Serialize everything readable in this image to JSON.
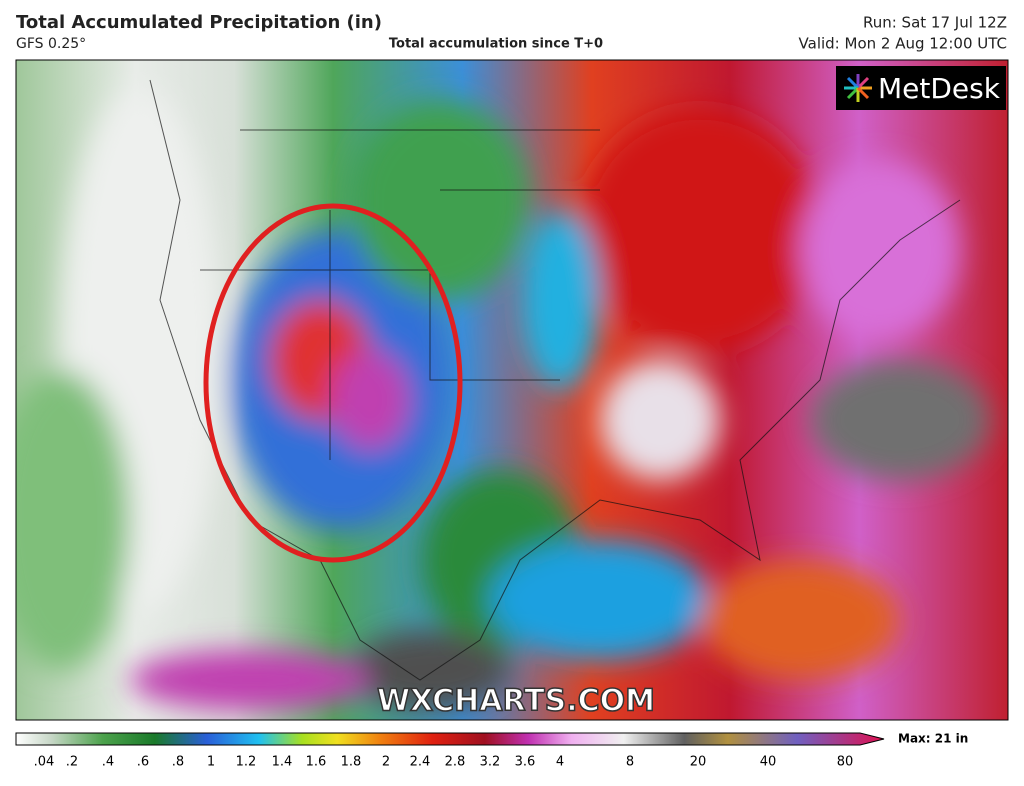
{
  "header": {
    "title": "Total Accumulated Precipitation (in)",
    "model": "GFS 0.25°",
    "subtitle": "Total accumulation since T+0",
    "run": "Run: Sat 17 Jul 12Z",
    "valid": "Valid: Mon 2 Aug 12:00 UTC"
  },
  "brand": "MetDesk",
  "watermark": "WXCHARTS.COM",
  "legend": {
    "labels": [
      ".04",
      ".2",
      ".4",
      ".6",
      ".8",
      "1",
      "1.2",
      "1.4",
      "1.6",
      "1.8",
      "2",
      "2.4",
      "2.8",
      "3.2",
      "3.6",
      "4",
      "8",
      "20",
      "40",
      "80"
    ],
    "max": "Max: 21 in"
  }
}
